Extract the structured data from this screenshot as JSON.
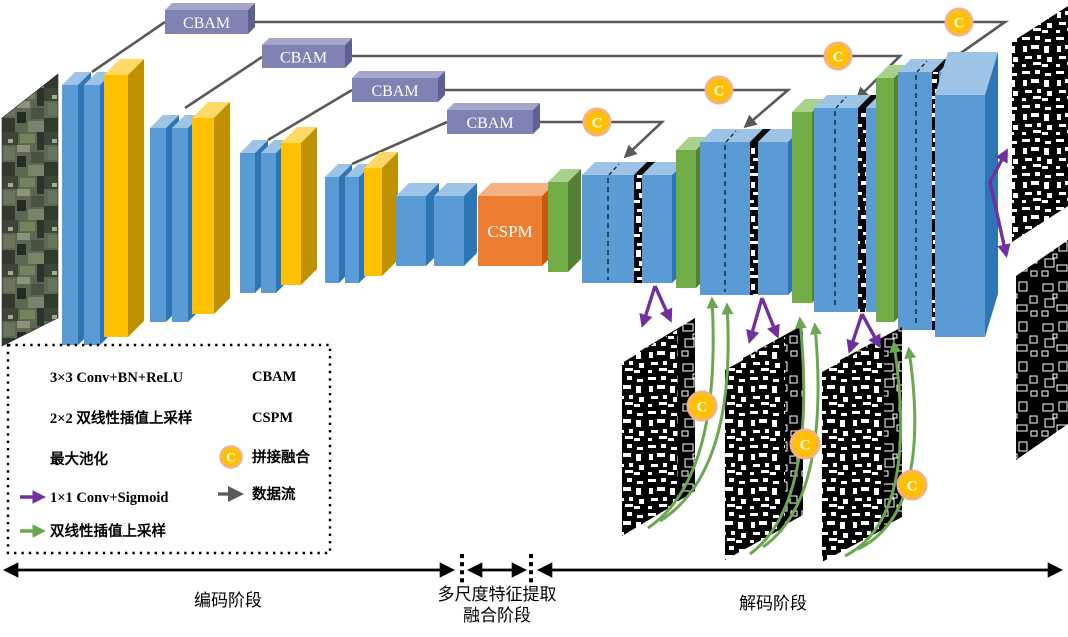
{
  "figure": {
    "labels": {
      "cbam": "CBAM",
      "cspm": "CSPM",
      "concat": "C"
    },
    "stage_labels": {
      "encoder": "编码阶段",
      "middle_line1": "多尺度特征提取",
      "middle_line2": "融合阶段",
      "decoder": "解码阶段"
    },
    "legend": {
      "left": [
        {
          "icon": "conv-block-icon",
          "label": "3×3 Conv+BN+ReLU"
        },
        {
          "icon": "upsample-block-icon",
          "label": "2×2 双线性插值上采样"
        },
        {
          "icon": "maxpool-block-icon",
          "label": "最大池化"
        },
        {
          "icon": "conv1x1-arrow-icon",
          "label": "1×1 Conv+Sigmoid"
        },
        {
          "icon": "bilinear-arrow-icon",
          "label": "双线性插值上采样"
        }
      ],
      "right": [
        {
          "icon": "cbam-block-icon",
          "label": "CBAM"
        },
        {
          "icon": "cspm-block-icon",
          "label": "CSPM"
        },
        {
          "icon": "concat-icon",
          "label": "拼接融合"
        },
        {
          "icon": "dataflow-arrow-icon",
          "label": "数据流"
        }
      ]
    },
    "colors": {
      "conv_blue": "#5B9BD5",
      "conv_blue_top": "#9DC3E6",
      "conv_blue_side": "#2E75B6",
      "pool_yellow": "#FFC000",
      "pool_yellow_top": "#FFD966",
      "pool_yellow_side": "#BF9000",
      "up_green": "#70AD47",
      "up_green_top": "#A9D18E",
      "up_green_side": "#538135",
      "cspm_orange": "#ED7D31",
      "cspm_orange_top": "#F4B183",
      "cspm_orange_side": "#C55A11",
      "cbam_slate": "#8182B4",
      "cbam_slate_top": "#A6A6CC",
      "cbam_slate_side": "#5F6092",
      "concat_fill": "#FFC000",
      "concat_ring": "#F4B183",
      "purple_arrow": "#7030A0",
      "green_arrow": "#6AA84F",
      "gray_line": "#595959"
    }
  }
}
